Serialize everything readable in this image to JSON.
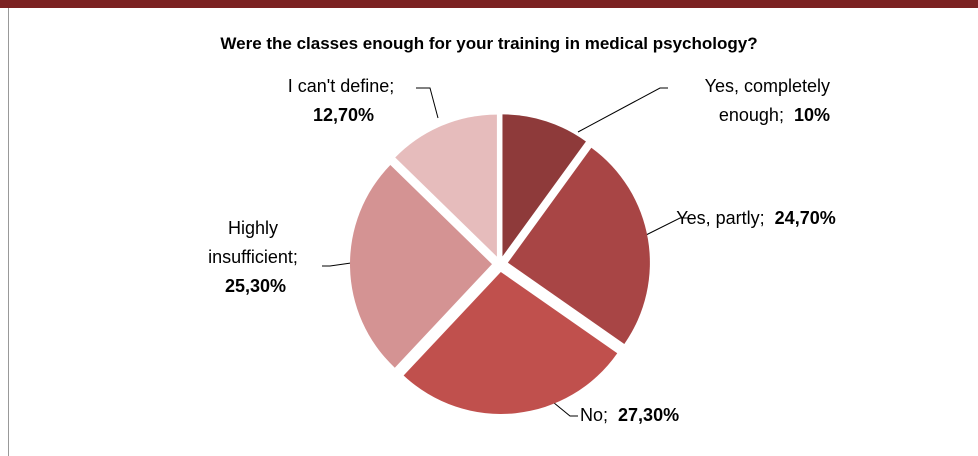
{
  "chart_data": {
    "type": "pie",
    "title": "Were the classes enough for your training in medical psychology?",
    "categories": [
      "Yes, completely enough;",
      "Yes, partly;",
      "No;",
      "Highly insufficient;",
      "I can't define;"
    ],
    "values": [
      10,
      24.7,
      27.3,
      25.3,
      12.7
    ],
    "value_labels": [
      "10%",
      "24,70%",
      "27,30%",
      "25,30%",
      "12,70%"
    ],
    "colors": [
      "#8e3a3a",
      "#a84545",
      "#c0504d",
      "#d49393",
      "#e6bcbc"
    ]
  }
}
